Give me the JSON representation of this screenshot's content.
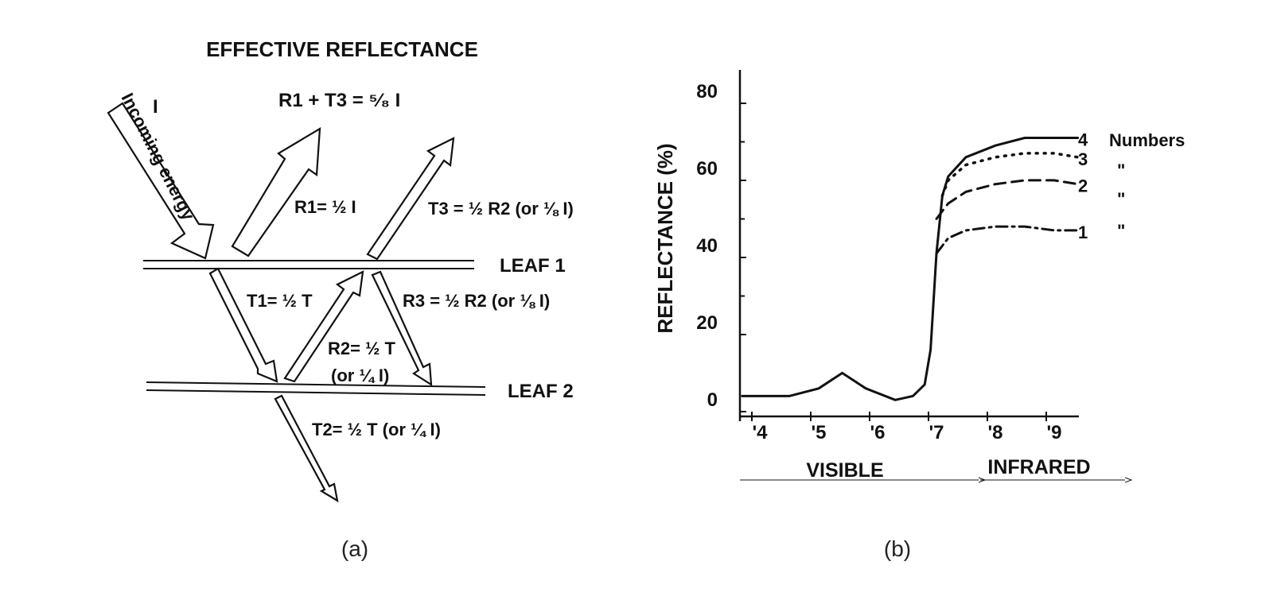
{
  "panel_a": {
    "title": "EFFECTIVE REFLECTANCE",
    "incident_symbol": "I",
    "incoming_label": "Incoming energy",
    "sum_label": "R1 + T3 = ⁵⁄₈  I",
    "r1_label": "R1= ½ I",
    "t3_label": "T3 = ½ R2 (or ⅛ I)",
    "leaf1_label": "LEAF  1",
    "t1_label": "T1= ½ T",
    "r3_label": "R3 = ½ R2 (or ⅛ I)",
    "r2_label": "R2= ½ T",
    "r2_sub": "(or ¼ I)",
    "leaf2_label": "LEAF  2",
    "t2_label": "T2= ½ T (or ¼ I)",
    "caption": "(a)"
  },
  "panel_b": {
    "caption": "(b)",
    "region_visible": "VISIBLE",
    "region_infrared": "INFRARED",
    "legend_header": "Numbers",
    "ditto": "\""
  },
  "chart_data": {
    "type": "line",
    "ylabel": "REFLECTANCE (%)",
    "xlabel": "",
    "ylim": [
      0,
      85
    ],
    "xlim": [
      0.37,
      0.94
    ],
    "yticks": [
      0,
      20,
      40,
      60,
      80
    ],
    "xticks": [
      0.4,
      0.5,
      0.6,
      0.7,
      0.8,
      0.9
    ],
    "xtick_labels": [
      "'4",
      "'5",
      "'6",
      "'7",
      "'8",
      "'9"
    ],
    "grid": false,
    "series": [
      {
        "name": "4",
        "style": "solid",
        "x": [
          0.37,
          0.4,
          0.45,
          0.5,
          0.54,
          0.58,
          0.63,
          0.66,
          0.68,
          0.69,
          0.7,
          0.71,
          0.72,
          0.75,
          0.8,
          0.85,
          0.9,
          0.94
        ],
        "y": [
          3,
          3,
          3,
          5,
          9,
          5,
          2,
          3,
          6,
          15,
          40,
          55,
          60,
          65,
          68,
          70,
          70,
          70
        ]
      },
      {
        "name": "3",
        "style": "dotted",
        "x": [
          0.71,
          0.72,
          0.75,
          0.8,
          0.85,
          0.9,
          0.94
        ],
        "y": [
          55,
          59,
          63,
          65,
          66,
          66,
          65
        ]
      },
      {
        "name": "2",
        "style": "dashed",
        "x": [
          0.7,
          0.72,
          0.75,
          0.8,
          0.85,
          0.9,
          0.94
        ],
        "y": [
          49,
          53,
          56,
          58,
          59,
          59,
          58
        ]
      },
      {
        "name": "1",
        "style": "dashdot",
        "x": [
          0.7,
          0.72,
          0.75,
          0.8,
          0.85,
          0.9,
          0.94
        ],
        "y": [
          40,
          44,
          46,
          47,
          47,
          46,
          46
        ]
      }
    ]
  }
}
